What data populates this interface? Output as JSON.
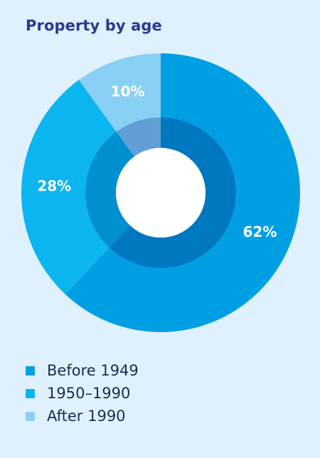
{
  "chart_data": {
    "type": "pie",
    "title": "Property by age",
    "categories": [
      "Before 1949",
      "1950–1990",
      "After 1990"
    ],
    "values": [
      62,
      28,
      10
    ],
    "value_labels": [
      "62%",
      "28%",
      "10%"
    ],
    "colors": [
      "#009fe3",
      "#0bb5ef",
      "#88d0f4"
    ],
    "inner_colors": [
      "#0077c1",
      "#008fd0",
      "#619ed6"
    ],
    "center_color": "#ffffff",
    "legend_position": "bottom-left"
  },
  "legend": {
    "items": [
      {
        "label": "Before 1949",
        "color": "#009fe3"
      },
      {
        "label": "1950–1990",
        "color": "#0bb5ef"
      },
      {
        "label": "After 1990",
        "color": "#88d0f4"
      }
    ]
  }
}
